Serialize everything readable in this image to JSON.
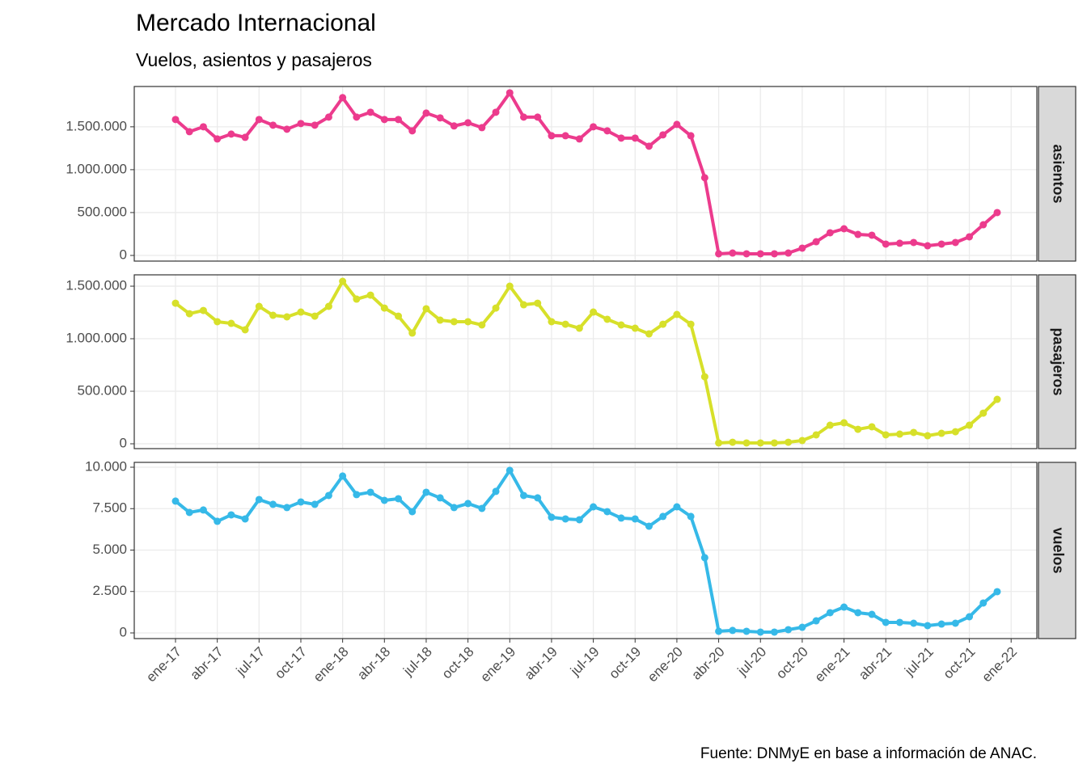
{
  "title": "Mercado Internacional",
  "subtitle": "Vuelos, asientos y pasajeros",
  "caption": "Fuente: DNMyE en base a información de ANAC.",
  "categories": [
    "ene-17",
    null,
    null,
    "abr-17",
    null,
    null,
    "jul-17",
    null,
    null,
    "oct-17",
    null,
    null,
    "ene-18",
    null,
    null,
    "abr-18",
    null,
    null,
    "jul-18",
    null,
    null,
    "oct-18",
    null,
    null,
    "ene-19",
    null,
    null,
    "abr-19",
    null,
    null,
    "jul-19",
    null,
    null,
    "oct-19",
    null,
    null,
    "ene-20",
    null,
    null,
    "abr-20",
    null,
    null,
    "jul-20",
    null,
    null,
    "oct-20",
    null,
    null,
    "ene-21",
    null,
    null,
    "abr-21",
    null,
    null,
    "jul-21",
    null,
    null,
    "oct-21",
    null,
    null,
    "ene-22"
  ],
  "chart_data": [
    {
      "type": "line",
      "facet": "asientos",
      "color": "#ec3b8d",
      "grid": true,
      "values": [
        1585000,
        1443000,
        1500000,
        1358000,
        1415000,
        1377000,
        1585000,
        1519000,
        1472000,
        1538000,
        1519000,
        1613000,
        1840000,
        1613000,
        1670000,
        1585000,
        1585000,
        1453000,
        1660000,
        1604000,
        1510000,
        1547000,
        1490000,
        1670000,
        1896000,
        1613000,
        1613000,
        1396000,
        1396000,
        1358000,
        1500000,
        1453000,
        1368000,
        1368000,
        1274000,
        1406000,
        1528000,
        1396000,
        906000,
        19000,
        28000,
        19000,
        19000,
        19000,
        28000,
        85000,
        160000,
        264000,
        311000,
        245000,
        236000,
        132000,
        142000,
        151000,
        113000,
        132000,
        151000,
        217000,
        358000,
        500000,
        null
      ],
      "ylim": [
        -66000,
        1970000
      ],
      "yticks": [
        0,
        {
          "value": 500000,
          "label": "500.000"
        },
        {
          "value": 1000000,
          "label": "1.000.000"
        },
        {
          "value": 1500000,
          "label": "1.500.000"
        }
      ]
    },
    {
      "type": "line",
      "facet": "pasajeros",
      "color": "#d7e02a",
      "grid": true,
      "values": [
        1338000,
        1238000,
        1269000,
        1162000,
        1146000,
        1085000,
        1308000,
        1223000,
        1208000,
        1254000,
        1215000,
        1308000,
        1546000,
        1377000,
        1415000,
        1292000,
        1215000,
        1054000,
        1285000,
        1177000,
        1162000,
        1162000,
        1131000,
        1292000,
        1500000,
        1323000,
        1338000,
        1162000,
        1138000,
        1100000,
        1254000,
        1185000,
        1131000,
        1100000,
        1046000,
        1138000,
        1231000,
        1138000,
        638000,
        8000,
        15000,
        8000,
        8000,
        8000,
        15000,
        31000,
        85000,
        177000,
        200000,
        138000,
        162000,
        85000,
        92000,
        108000,
        77000,
        100000,
        115000,
        177000,
        292000,
        423000,
        null
      ],
      "ylim": [
        -46000,
        1608000
      ],
      "yticks": [
        0,
        {
          "value": 500000,
          "label": "500.000"
        },
        {
          "value": 1000000,
          "label": "1.000.000"
        },
        {
          "value": 1500000,
          "label": "1.500.000"
        }
      ]
    },
    {
      "type": "line",
      "facet": "vuelos",
      "color": "#36b9e8",
      "grid": true,
      "values": [
        7955,
        7270,
        7420,
        6735,
        7125,
        6880,
        8050,
        7760,
        7565,
        7905,
        7760,
        8295,
        9470,
        8345,
        8490,
        8000,
        8100,
        7320,
        8490,
        8150,
        7565,
        7810,
        7515,
        8540,
        9810,
        8295,
        8150,
        6980,
        6880,
        6830,
        7610,
        7320,
        6930,
        6880,
        6440,
        7030,
        7610,
        7030,
        4540,
        100,
        150,
        100,
        50,
        50,
        195,
        340,
        730,
        1220,
        1560,
        1220,
        1120,
        635,
        635,
        585,
        440,
        535,
        585,
        975,
        1805,
        2490,
        null
      ],
      "ylim": [
        -342,
        10293
      ],
      "yticks": [
        0,
        {
          "value": 2500,
          "label": "2.500"
        },
        {
          "value": 5000,
          "label": "5.000"
        },
        {
          "value": 7500,
          "label": "7.500"
        },
        {
          "value": 10000,
          "label": "10.000"
        }
      ]
    }
  ]
}
